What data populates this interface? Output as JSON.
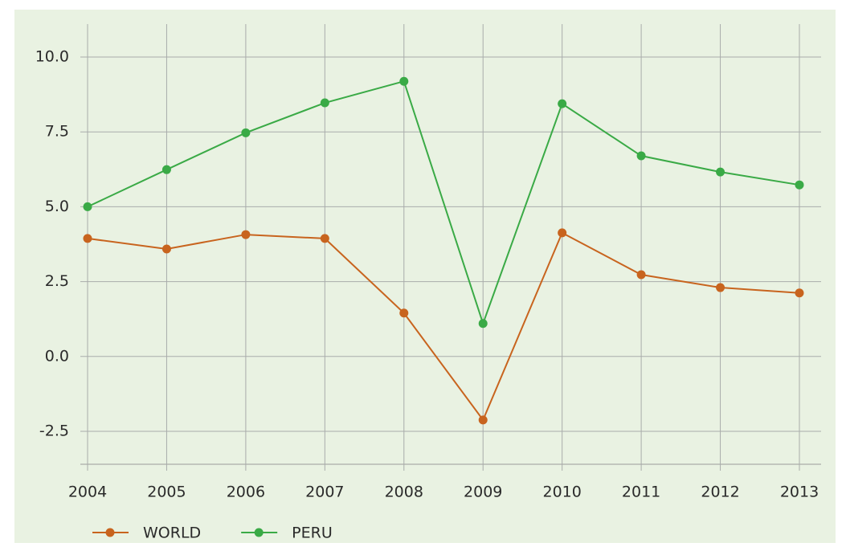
{
  "chart_data": {
    "type": "line",
    "categories": [
      "2004",
      "2005",
      "2006",
      "2007",
      "2008",
      "2009",
      "2010",
      "2011",
      "2012",
      "2013"
    ],
    "series": [
      {
        "name": "WORLD",
        "color": "#c8641e",
        "values": [
          3.94,
          3.59,
          4.07,
          3.94,
          1.45,
          -2.12,
          4.13,
          2.73,
          2.3,
          2.12
        ]
      },
      {
        "name": "PERU",
        "color": "#3aaa46",
        "values": [
          5.0,
          6.24,
          7.47,
          8.47,
          9.19,
          1.1,
          8.44,
          6.7,
          6.16,
          5.73
        ]
      }
    ],
    "ylim": [
      -3.6,
      11.1
    ],
    "yticks": [
      {
        "value": 10,
        "label": "10.0"
      },
      7.5,
      {
        "value": 5,
        "label": "5.0"
      },
      2.5,
      {
        "value": 0,
        "label": "0.0"
      },
      -2.5
    ],
    "grid": true,
    "legend": "bottom"
  }
}
